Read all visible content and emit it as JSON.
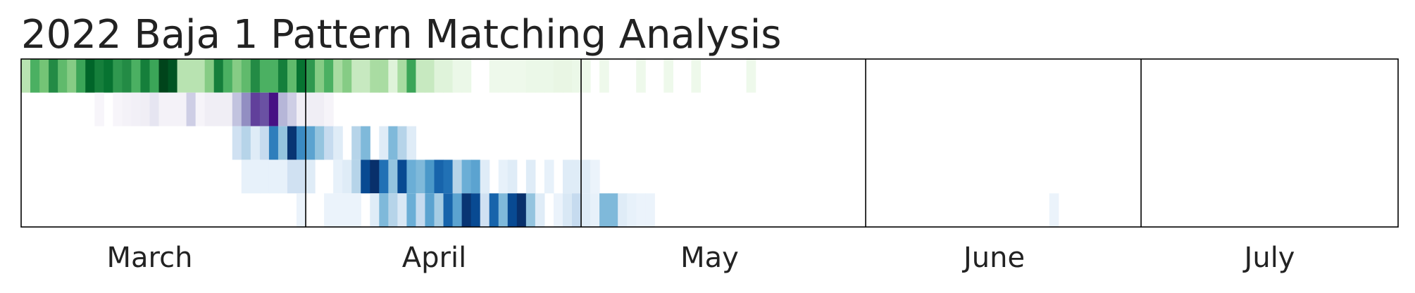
{
  "chart_data": {
    "type": "heatmap",
    "title": "2022 Baja 1 Pattern Matching Analysis",
    "xlabel": "",
    "ylabel": "",
    "x_tick_labels": [
      "March",
      "April",
      "May",
      "June",
      "July"
    ],
    "x_tick_dates": [
      "2022-03-15",
      "2022-04-15",
      "2022-05-15",
      "2022-06-15",
      "2022-07-15"
    ],
    "month_boundaries": [
      "2022-04-01",
      "2022-05-01",
      "2022-06-01",
      "2022-07-01"
    ],
    "x_start": "2022-03-01",
    "x_end": "2022-07-29",
    "rows": [
      {
        "colormap": "Greens",
        "cells": [
          [
            "2022-03-01",
            0.3
          ],
          [
            "2022-03-02",
            0.6
          ],
          [
            "2022-03-03",
            0.5
          ],
          [
            "2022-03-04",
            0.75
          ],
          [
            "2022-03-05",
            0.55
          ],
          [
            "2022-03-06",
            0.45
          ],
          [
            "2022-03-07",
            0.65
          ],
          [
            "2022-03-08",
            0.9
          ],
          [
            "2022-03-09",
            0.8
          ],
          [
            "2022-03-10",
            0.85
          ],
          [
            "2022-03-11",
            0.7
          ],
          [
            "2022-03-12",
            0.75
          ],
          [
            "2022-03-13",
            0.6
          ],
          [
            "2022-03-14",
            0.8
          ],
          [
            "2022-03-15",
            0.65
          ],
          [
            "2022-03-16",
            1.0
          ],
          [
            "2022-03-17",
            0.95
          ],
          [
            "2022-03-18",
            0.3
          ],
          [
            "2022-03-19",
            0.3
          ],
          [
            "2022-03-20",
            0.3
          ],
          [
            "2022-03-21",
            0.45
          ],
          [
            "2022-03-22",
            0.8
          ],
          [
            "2022-03-23",
            0.6
          ],
          [
            "2022-03-24",
            0.45
          ],
          [
            "2022-03-25",
            0.55
          ],
          [
            "2022-03-26",
            0.75
          ],
          [
            "2022-03-27",
            0.6
          ],
          [
            "2022-03-28",
            0.6
          ],
          [
            "2022-03-29",
            0.8
          ],
          [
            "2022-03-30",
            0.55
          ],
          [
            "2022-03-31",
            0.85
          ],
          [
            "2022-04-01",
            0.7
          ],
          [
            "2022-04-02",
            0.45
          ],
          [
            "2022-04-03",
            0.6
          ],
          [
            "2022-04-04",
            0.35
          ],
          [
            "2022-04-05",
            0.45
          ],
          [
            "2022-04-06",
            0.25
          ],
          [
            "2022-04-07",
            0.25
          ],
          [
            "2022-04-08",
            0.35
          ],
          [
            "2022-04-09",
            0.35
          ],
          [
            "2022-04-10",
            0.15
          ],
          [
            "2022-04-11",
            0.35
          ],
          [
            "2022-04-12",
            0.65
          ],
          [
            "2022-04-13",
            0.25
          ],
          [
            "2022-04-14",
            0.25
          ],
          [
            "2022-04-15",
            0.15
          ],
          [
            "2022-04-16",
            0.15
          ],
          [
            "2022-04-17",
            0.08
          ],
          [
            "2022-04-18",
            0.08
          ],
          [
            "2022-04-21",
            0.06
          ],
          [
            "2022-04-22",
            0.06
          ],
          [
            "2022-04-23",
            0.06
          ],
          [
            "2022-04-24",
            0.06
          ],
          [
            "2022-04-25",
            0.08
          ],
          [
            "2022-04-26",
            0.08
          ],
          [
            "2022-04-27",
            0.08
          ],
          [
            "2022-04-28",
            0.1
          ],
          [
            "2022-04-29",
            0.1
          ],
          [
            "2022-04-30",
            0.08
          ],
          [
            "2022-05-01",
            0.06
          ],
          [
            "2022-05-03",
            0.06
          ],
          [
            "2022-05-07",
            0.06
          ],
          [
            "2022-05-10",
            0.06
          ],
          [
            "2022-05-13",
            0.06
          ],
          [
            "2022-05-19",
            0.06
          ]
        ]
      },
      {
        "colormap": "Purples",
        "cells": [
          [
            "2022-03-09",
            0.05
          ],
          [
            "2022-03-11",
            0.05
          ],
          [
            "2022-03-12",
            0.08
          ],
          [
            "2022-03-13",
            0.1
          ],
          [
            "2022-03-14",
            0.12
          ],
          [
            "2022-03-15",
            0.18
          ],
          [
            "2022-03-16",
            0.08
          ],
          [
            "2022-03-17",
            0.08
          ],
          [
            "2022-03-18",
            0.08
          ],
          [
            "2022-03-19",
            0.3
          ],
          [
            "2022-03-20",
            0.06
          ],
          [
            "2022-03-21",
            0.12
          ],
          [
            "2022-03-22",
            0.12
          ],
          [
            "2022-03-23",
            0.12
          ],
          [
            "2022-03-24",
            0.35
          ],
          [
            "2022-03-25",
            0.55
          ],
          [
            "2022-03-26",
            0.8
          ],
          [
            "2022-03-27",
            0.75
          ],
          [
            "2022-03-28",
            0.95
          ],
          [
            "2022-03-29",
            0.4
          ],
          [
            "2022-03-30",
            0.3
          ],
          [
            "2022-03-31",
            0.12
          ],
          [
            "2022-04-01",
            0.12
          ],
          [
            "2022-04-02",
            0.12
          ],
          [
            "2022-04-03",
            0.06
          ]
        ]
      },
      {
        "colormap": "Blues",
        "cells": [
          [
            "2022-03-24",
            0.2
          ],
          [
            "2022-03-25",
            0.3
          ],
          [
            "2022-03-26",
            0.12
          ],
          [
            "2022-03-27",
            0.25
          ],
          [
            "2022-03-28",
            0.7
          ],
          [
            "2022-03-29",
            0.4
          ],
          [
            "2022-03-30",
            0.98
          ],
          [
            "2022-03-31",
            0.65
          ],
          [
            "2022-04-01",
            0.55
          ],
          [
            "2022-04-02",
            0.4
          ],
          [
            "2022-04-03",
            0.25
          ],
          [
            "2022-04-04",
            0.12
          ],
          [
            "2022-04-06",
            0.3
          ],
          [
            "2022-04-07",
            0.45
          ],
          [
            "2022-04-09",
            0.12
          ],
          [
            "2022-04-10",
            0.45
          ],
          [
            "2022-04-11",
            0.3
          ],
          [
            "2022-04-12",
            0.12
          ]
        ]
      },
      {
        "colormap": "Blues",
        "cells": [
          [
            "2022-03-25",
            0.08
          ],
          [
            "2022-03-26",
            0.08
          ],
          [
            "2022-03-27",
            0.08
          ],
          [
            "2022-03-28",
            0.08
          ],
          [
            "2022-03-29",
            0.08
          ],
          [
            "2022-03-30",
            0.2
          ],
          [
            "2022-03-31",
            0.2
          ],
          [
            "2022-04-01",
            0.12
          ],
          [
            "2022-04-04",
            0.08
          ],
          [
            "2022-04-05",
            0.12
          ],
          [
            "2022-04-06",
            0.3
          ],
          [
            "2022-04-07",
            0.9
          ],
          [
            "2022-04-08",
            1.0
          ],
          [
            "2022-04-09",
            0.75
          ],
          [
            "2022-04-10",
            0.4
          ],
          [
            "2022-04-11",
            0.9
          ],
          [
            "2022-04-12",
            0.5
          ],
          [
            "2022-04-13",
            0.45
          ],
          [
            "2022-04-14",
            0.6
          ],
          [
            "2022-04-15",
            0.8
          ],
          [
            "2022-04-16",
            0.75
          ],
          [
            "2022-04-17",
            0.3
          ],
          [
            "2022-04-18",
            0.5
          ],
          [
            "2022-04-19",
            0.55
          ],
          [
            "2022-04-20",
            0.12
          ],
          [
            "2022-04-22",
            0.08
          ],
          [
            "2022-04-23",
            0.12
          ],
          [
            "2022-04-25",
            0.12
          ],
          [
            "2022-04-27",
            0.08
          ],
          [
            "2022-04-29",
            0.12
          ],
          [
            "2022-04-30",
            0.12
          ],
          [
            "2022-05-01",
            0.12
          ],
          [
            "2022-05-02",
            0.06
          ]
        ]
      },
      {
        "colormap": "Blues",
        "cells": [
          [
            "2022-03-31",
            0.06
          ],
          [
            "2022-04-03",
            0.06
          ],
          [
            "2022-04-04",
            0.06
          ],
          [
            "2022-04-05",
            0.06
          ],
          [
            "2022-04-06",
            0.06
          ],
          [
            "2022-04-08",
            0.12
          ],
          [
            "2022-04-09",
            0.45
          ],
          [
            "2022-04-10",
            0.3
          ],
          [
            "2022-04-11",
            0.15
          ],
          [
            "2022-04-12",
            0.5
          ],
          [
            "2022-04-13",
            0.25
          ],
          [
            "2022-04-14",
            0.55
          ],
          [
            "2022-04-15",
            0.35
          ],
          [
            "2022-04-16",
            0.8
          ],
          [
            "2022-04-17",
            0.55
          ],
          [
            "2022-04-18",
            0.98
          ],
          [
            "2022-04-19",
            0.9
          ],
          [
            "2022-04-20",
            0.2
          ],
          [
            "2022-04-21",
            0.8
          ],
          [
            "2022-04-22",
            0.45
          ],
          [
            "2022-04-23",
            0.9
          ],
          [
            "2022-04-24",
            1.0
          ],
          [
            "2022-04-25",
            0.4
          ],
          [
            "2022-04-26",
            0.12
          ],
          [
            "2022-04-28",
            0.06
          ],
          [
            "2022-04-29",
            0.15
          ],
          [
            "2022-04-30",
            0.25
          ],
          [
            "2022-05-01",
            0.12
          ],
          [
            "2022-05-02",
            0.08
          ],
          [
            "2022-05-03",
            0.45
          ],
          [
            "2022-05-04",
            0.45
          ],
          [
            "2022-05-05",
            0.12
          ],
          [
            "2022-05-06",
            0.08
          ],
          [
            "2022-05-07",
            0.06
          ],
          [
            "2022-05-08",
            0.06
          ],
          [
            "2022-06-21",
            0.06
          ]
        ]
      }
    ]
  }
}
